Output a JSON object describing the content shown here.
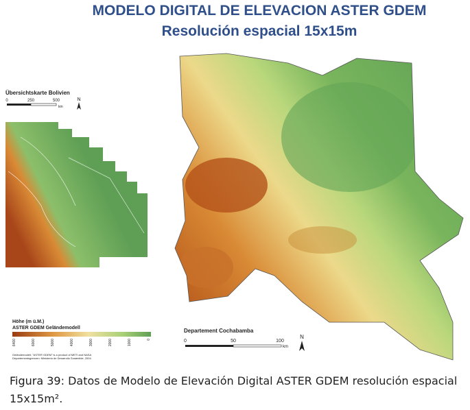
{
  "title": {
    "line1": "MODELO DIGITAL DE ELEVACION ASTER GDEM",
    "line2": "Resolución espacial 15x15m"
  },
  "overview_map": {
    "title": "Übersichtskarte Bolivien",
    "scale": [
      "0",
      "250",
      "500"
    ],
    "scale_unit": "km",
    "north": "N"
  },
  "legend": {
    "title": "Höhe (m ü.M.)",
    "subtitle": "ASTER GDEM Geländemodell",
    "ticks": [
      "6400",
      "6000",
      "5000",
      "4000",
      "3000",
      "2000",
      "1000",
      "0"
    ]
  },
  "main_map": {
    "title": "Departement Cochabamba",
    "scale": [
      "0",
      "50",
      "100"
    ],
    "scale_unit": "km",
    "north": "N"
  },
  "caption": {
    "label": "Figura 39",
    "text": ": Datos de Modelo de Elevación Digital ASTER GDEM resolución espacial 15x15m²."
  }
}
